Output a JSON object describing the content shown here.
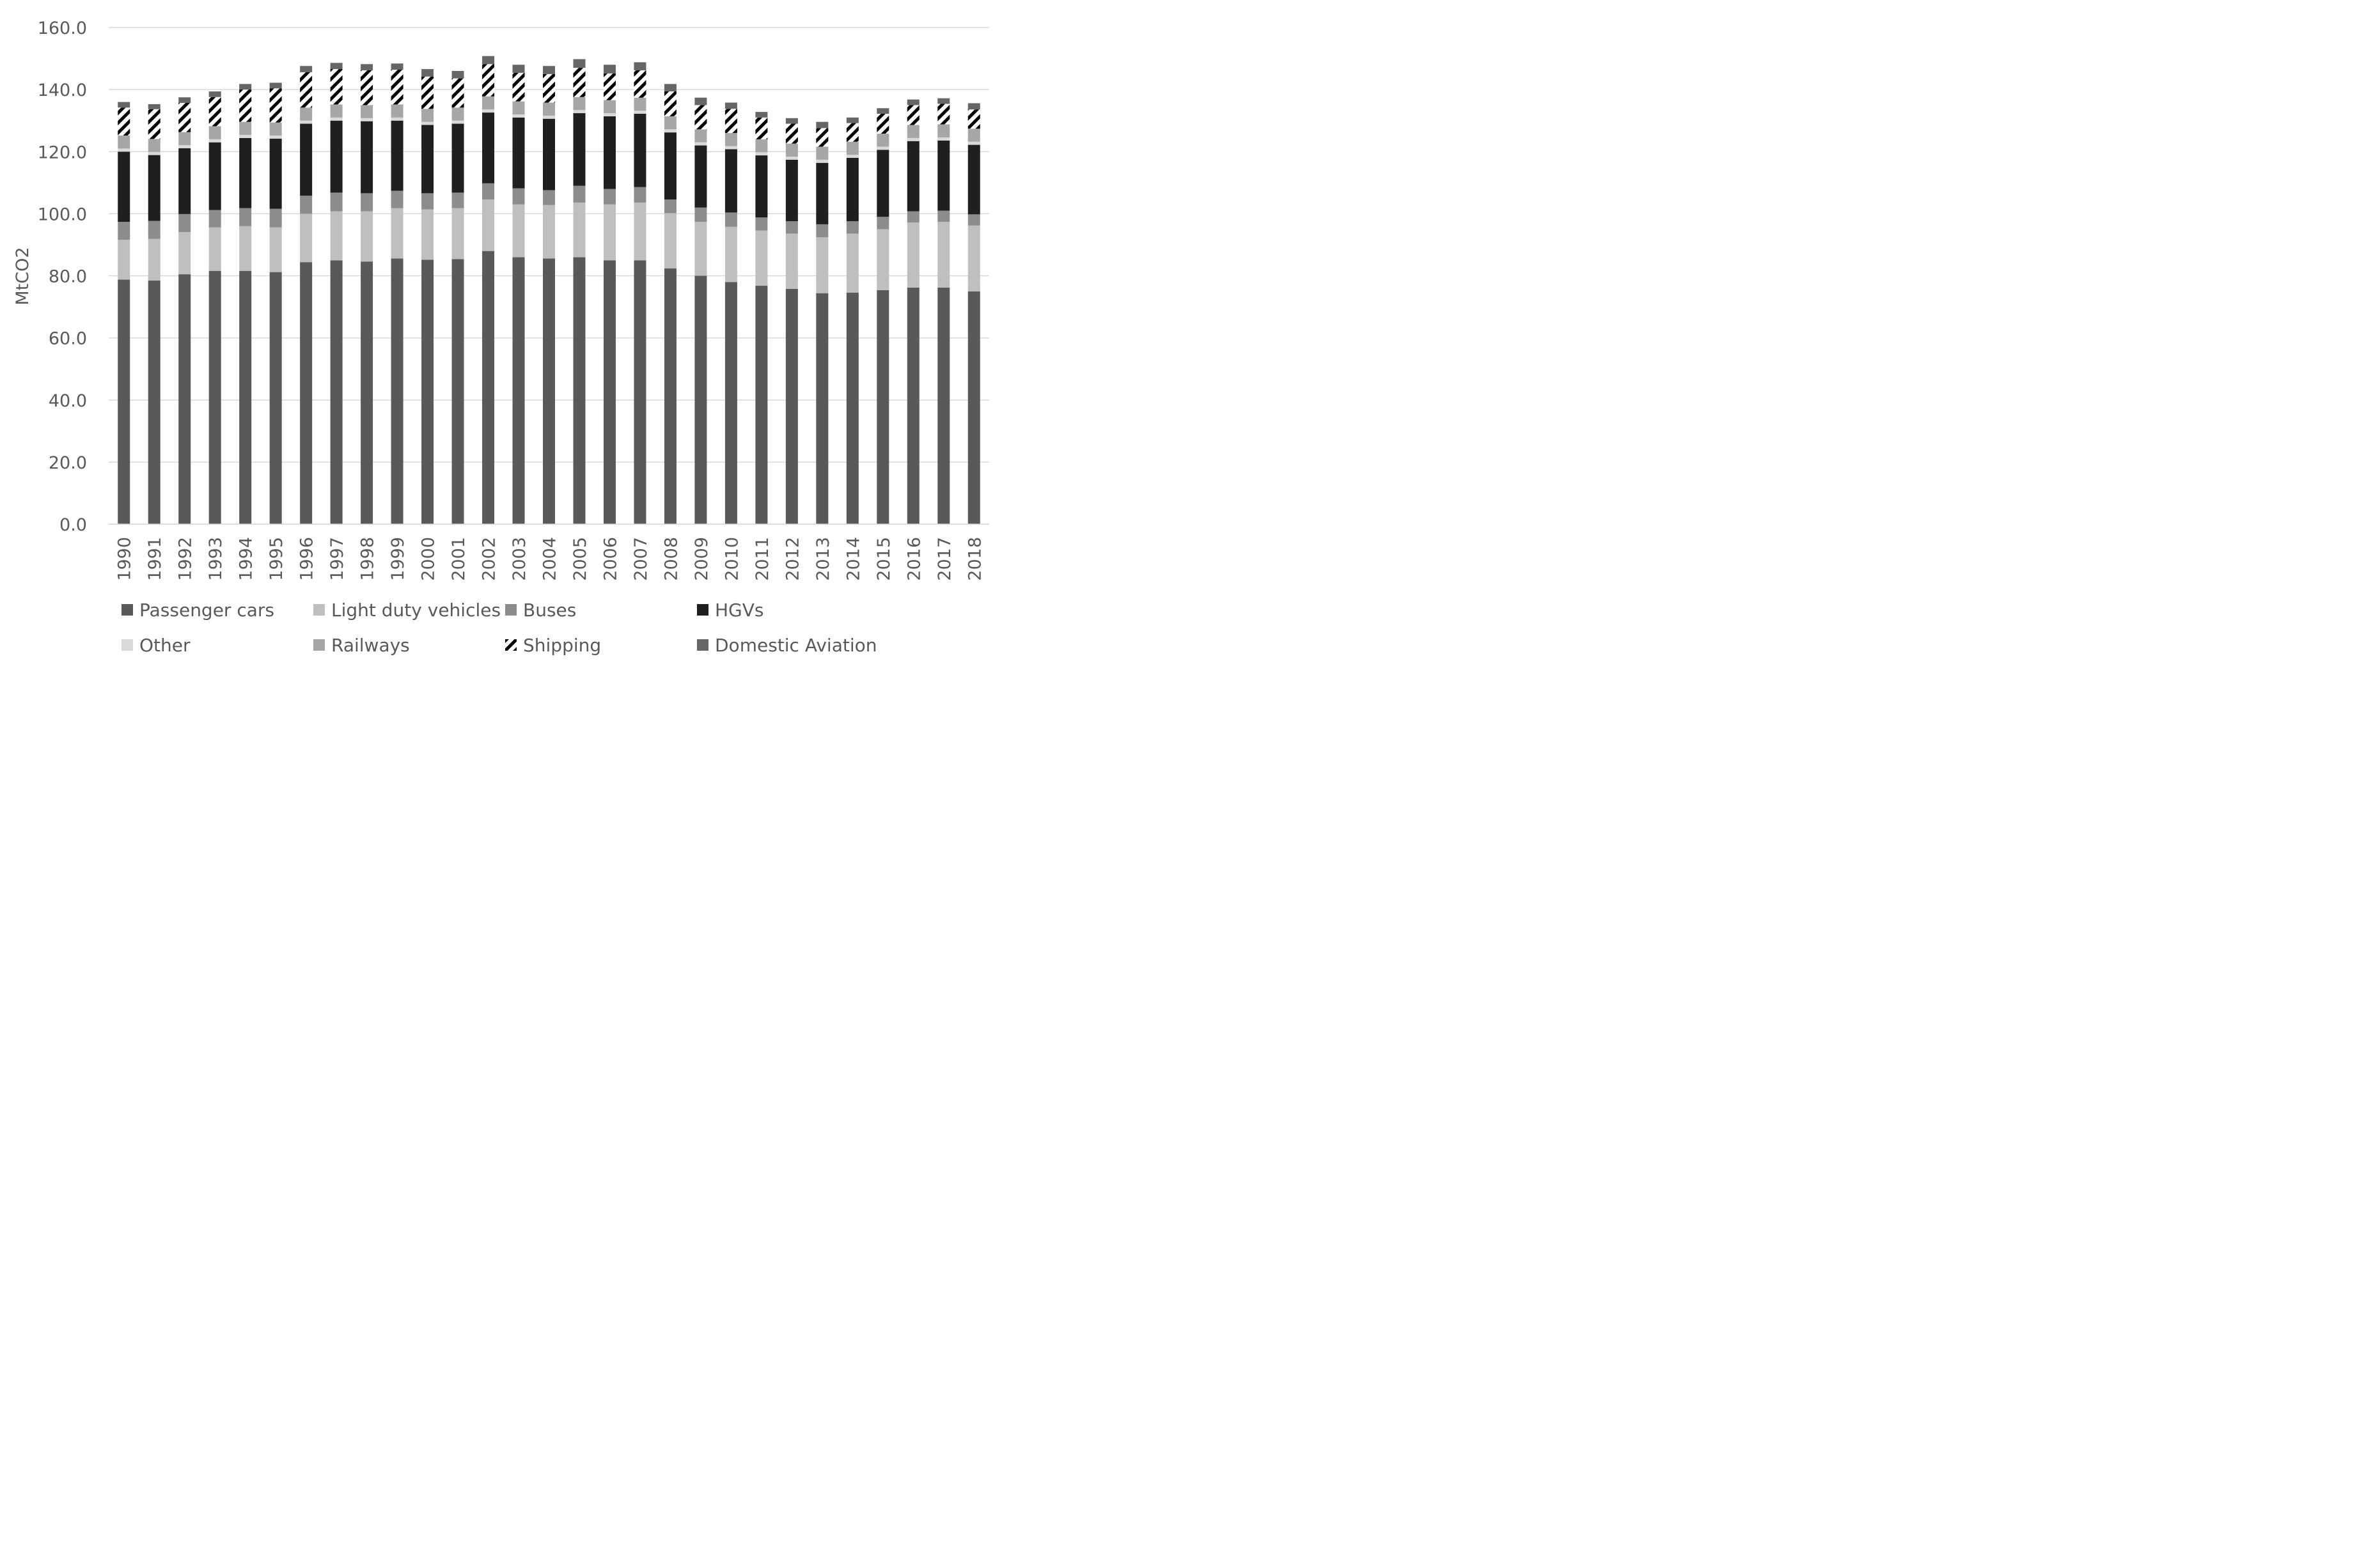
{
  "chart_data": {
    "type": "bar",
    "stacked": true,
    "title": "",
    "xlabel": "",
    "ylabel": "MtCO2",
    "ylim": [
      0,
      160
    ],
    "yticks": [
      "0.0",
      "20.0",
      "40.0",
      "60.0",
      "80.0",
      "100.0",
      "120.0",
      "140.0",
      "160.0"
    ],
    "grid": true,
    "legend_position": "bottom",
    "categories": [
      "1990",
      "1991",
      "1992",
      "1993",
      "1994",
      "1995",
      "1996",
      "1997",
      "1998",
      "1999",
      "2000",
      "2001",
      "2002",
      "2003",
      "2004",
      "2005",
      "2006",
      "2007",
      "2008",
      "2009",
      "2010",
      "2011",
      "2012",
      "2013",
      "2014",
      "2015",
      "2016",
      "2017",
      "2018"
    ],
    "series": [
      {
        "name": "Passenger cars",
        "color": "#595959",
        "pattern": "solid",
        "values": [
          78.8,
          78.5,
          80.5,
          81.6,
          81.6,
          81.2,
          84.4,
          85.0,
          84.6,
          85.6,
          85.2,
          85.4,
          88.0,
          86.0,
          85.6,
          86.0,
          85.0,
          85.0,
          82.4,
          80.0,
          78.0,
          76.8,
          75.8,
          74.4,
          74.6,
          75.4,
          76.2,
          76.2,
          75.0
        ]
      },
      {
        "name": "Light duty vehicles",
        "color": "#bfbfbf",
        "pattern": "solid",
        "values": [
          12.8,
          13.4,
          13.6,
          14.0,
          14.4,
          14.4,
          15.6,
          15.8,
          16.2,
          16.2,
          16.2,
          16.4,
          16.6,
          17.0,
          17.2,
          17.6,
          18.0,
          18.6,
          17.8,
          17.4,
          17.8,
          17.8,
          17.8,
          18.0,
          19.0,
          19.6,
          21.0,
          21.2,
          21.2
        ]
      },
      {
        "name": "Buses",
        "color": "#8c8c8c",
        "pattern": "solid",
        "values": [
          5.8,
          5.8,
          5.8,
          5.6,
          5.8,
          6.0,
          5.8,
          6.0,
          5.8,
          5.6,
          5.2,
          5.0,
          5.2,
          5.2,
          4.8,
          5.4,
          5.0,
          5.0,
          4.4,
          4.6,
          4.6,
          4.2,
          4.0,
          4.2,
          4.0,
          4.0,
          3.6,
          3.6,
          3.6
        ]
      },
      {
        "name": "HGVs",
        "color": "#1f1f1f",
        "pattern": "solid",
        "values": [
          22.6,
          21.2,
          21.2,
          21.8,
          22.6,
          22.6,
          23.2,
          23.2,
          23.2,
          22.6,
          22.0,
          22.2,
          22.8,
          22.8,
          23.0,
          23.4,
          23.4,
          23.6,
          21.6,
          20.0,
          20.4,
          20.0,
          19.8,
          19.8,
          20.4,
          21.6,
          22.6,
          22.6,
          22.4
        ]
      },
      {
        "name": "Other",
        "color": "#d9d9d9",
        "pattern": "solid",
        "values": [
          1.0,
          1.0,
          1.0,
          1.0,
          1.0,
          1.0,
          1.0,
          1.0,
          1.0,
          1.0,
          1.0,
          1.0,
          1.0,
          1.0,
          1.0,
          1.0,
          1.0,
          1.0,
          1.0,
          1.0,
          1.0,
          1.0,
          1.0,
          1.0,
          1.0,
          1.0,
          1.0,
          1.0,
          1.0
        ]
      },
      {
        "name": "Railways",
        "color": "#a6a6a6",
        "pattern": "solid",
        "values": [
          4.2,
          4.2,
          4.2,
          4.2,
          4.2,
          4.2,
          4.2,
          4.2,
          4.2,
          4.2,
          4.2,
          4.2,
          4.2,
          4.2,
          4.2,
          4.2,
          4.2,
          4.2,
          4.2,
          4.2,
          4.2,
          4.2,
          4.2,
          4.2,
          4.2,
          4.2,
          4.2,
          4.2,
          4.2
        ]
      },
      {
        "name": "Shipping",
        "color": "#000000",
        "pattern": "hatch",
        "values": [
          9.0,
          9.6,
          9.4,
          9.4,
          10.4,
          11.0,
          11.4,
          11.4,
          11.2,
          11.2,
          10.4,
          9.4,
          10.4,
          9.2,
          9.2,
          9.4,
          8.6,
          8.8,
          8.0,
          7.8,
          7.8,
          7.0,
          6.4,
          6.0,
          6.0,
          6.4,
          6.4,
          6.6,
          6.2
        ]
      },
      {
        "name": "Domestic Aviation",
        "color": "#666666",
        "pattern": "solid",
        "values": [
          1.8,
          1.6,
          1.8,
          1.8,
          1.8,
          1.8,
          2.0,
          2.0,
          2.0,
          2.0,
          2.4,
          2.4,
          2.6,
          2.6,
          2.6,
          2.8,
          2.8,
          2.6,
          2.4,
          2.4,
          2.0,
          1.8,
          1.8,
          2.0,
          1.8,
          1.8,
          1.8,
          1.8,
          2.0
        ]
      }
    ]
  }
}
